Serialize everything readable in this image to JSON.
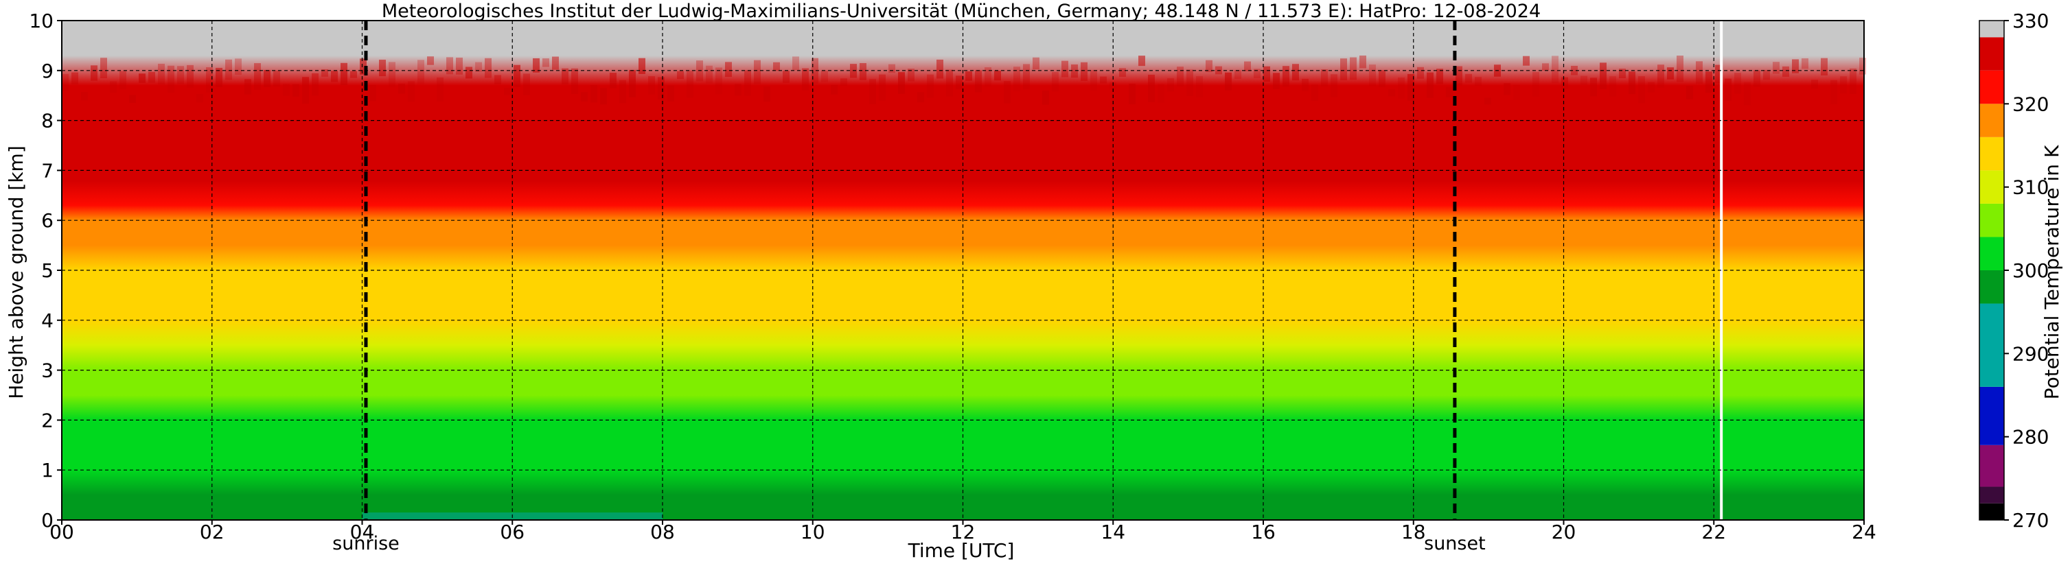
{
  "chart_data": {
    "type": "heatmap",
    "title": "Meteorologisches Institut der Ludwig-Maximilians-Universität (München, Germany; 48.148 N / 11.573 E):    HatPro: 12-08-2024",
    "xlabel": "Time [UTC]",
    "ylabel": "Height above ground [km]",
    "colorbar_label": "Potential Temperature in K",
    "xlim": [
      0,
      24
    ],
    "ylim": [
      0,
      10
    ],
    "x_ticks": [
      0,
      2,
      4,
      6,
      8,
      10,
      12,
      14,
      16,
      18,
      20,
      22,
      24
    ],
    "x_tick_labels": [
      "00",
      "02",
      "04",
      "06",
      "08",
      "10",
      "12",
      "14",
      "16",
      "18",
      "20",
      "22",
      "24"
    ],
    "y_ticks": [
      0,
      1,
      2,
      3,
      4,
      5,
      6,
      7,
      8,
      9,
      10
    ],
    "y_tick_labels": [
      "0",
      "1",
      "2",
      "3",
      "4",
      "5",
      "6",
      "7",
      "8",
      "9",
      "10"
    ],
    "grid": true,
    "color_range": [
      270,
      330
    ],
    "colorbar_ticks": [
      270,
      280,
      290,
      300,
      310,
      320,
      330
    ],
    "colorbar_tick_labels": [
      "270",
      "280",
      "290",
      "300",
      "310",
      "320",
      "330"
    ],
    "colorbar_colors": [
      {
        "from": 270,
        "to": 272,
        "color": "#000000"
      },
      {
        "from": 272,
        "to": 274,
        "color": "#3a0a3a"
      },
      {
        "from": 274,
        "to": 279,
        "color": "#8a0a6a"
      },
      {
        "from": 279,
        "to": 286,
        "color": "#0010c8"
      },
      {
        "from": 286,
        "to": 296,
        "color": "#00a8a0"
      },
      {
        "from": 296,
        "to": 300,
        "color": "#009a1e"
      },
      {
        "from": 300,
        "to": 304,
        "color": "#00d81e"
      },
      {
        "from": 304,
        "to": 308,
        "color": "#7fee00"
      },
      {
        "from": 308,
        "to": 312,
        "color": "#d8f000"
      },
      {
        "from": 312,
        "to": 316,
        "color": "#ffd400"
      },
      {
        "from": 316,
        "to": 320,
        "color": "#ff8c00"
      },
      {
        "from": 320,
        "to": 324,
        "color": "#ff0a00"
      },
      {
        "from": 324,
        "to": 328,
        "color": "#d40000"
      },
      {
        "from": 328,
        "to": 330,
        "color": "#c8c8c8"
      }
    ],
    "theta_profile": [
      {
        "height": 0.0,
        "theta": 297.5
      },
      {
        "height": 0.5,
        "theta": 299.5
      },
      {
        "height": 1.0,
        "theta": 301.0
      },
      {
        "height": 2.0,
        "theta": 302.5
      },
      {
        "height": 2.5,
        "theta": 304.5
      },
      {
        "height": 3.0,
        "theta": 306.5
      },
      {
        "height": 3.5,
        "theta": 309.5
      },
      {
        "height": 4.0,
        "theta": 312.0
      },
      {
        "height": 4.5,
        "theta": 314.0
      },
      {
        "height": 5.0,
        "theta": 315.5
      },
      {
        "height": 5.5,
        "theta": 317.0
      },
      {
        "height": 6.0,
        "theta": 319.0
      },
      {
        "height": 6.3,
        "theta": 321.5
      },
      {
        "height": 6.8,
        "theta": 324.5
      },
      {
        "height": 8.3,
        "theta": 326.5
      },
      {
        "height": 8.7,
        "theta": 327.5
      },
      {
        "height": 9.3,
        "theta": 329.0
      },
      {
        "height": 10.0,
        "theta": 330.0
      }
    ],
    "surface_anomaly": {
      "time_start": 4.0,
      "time_end": 8.0,
      "height_top": 0.15,
      "theta": 292
    },
    "gap_line_time": 22.1,
    "events": [
      {
        "time": 4.05,
        "label": "sunrise"
      },
      {
        "time": 18.55,
        "label": "sunset"
      }
    ]
  }
}
